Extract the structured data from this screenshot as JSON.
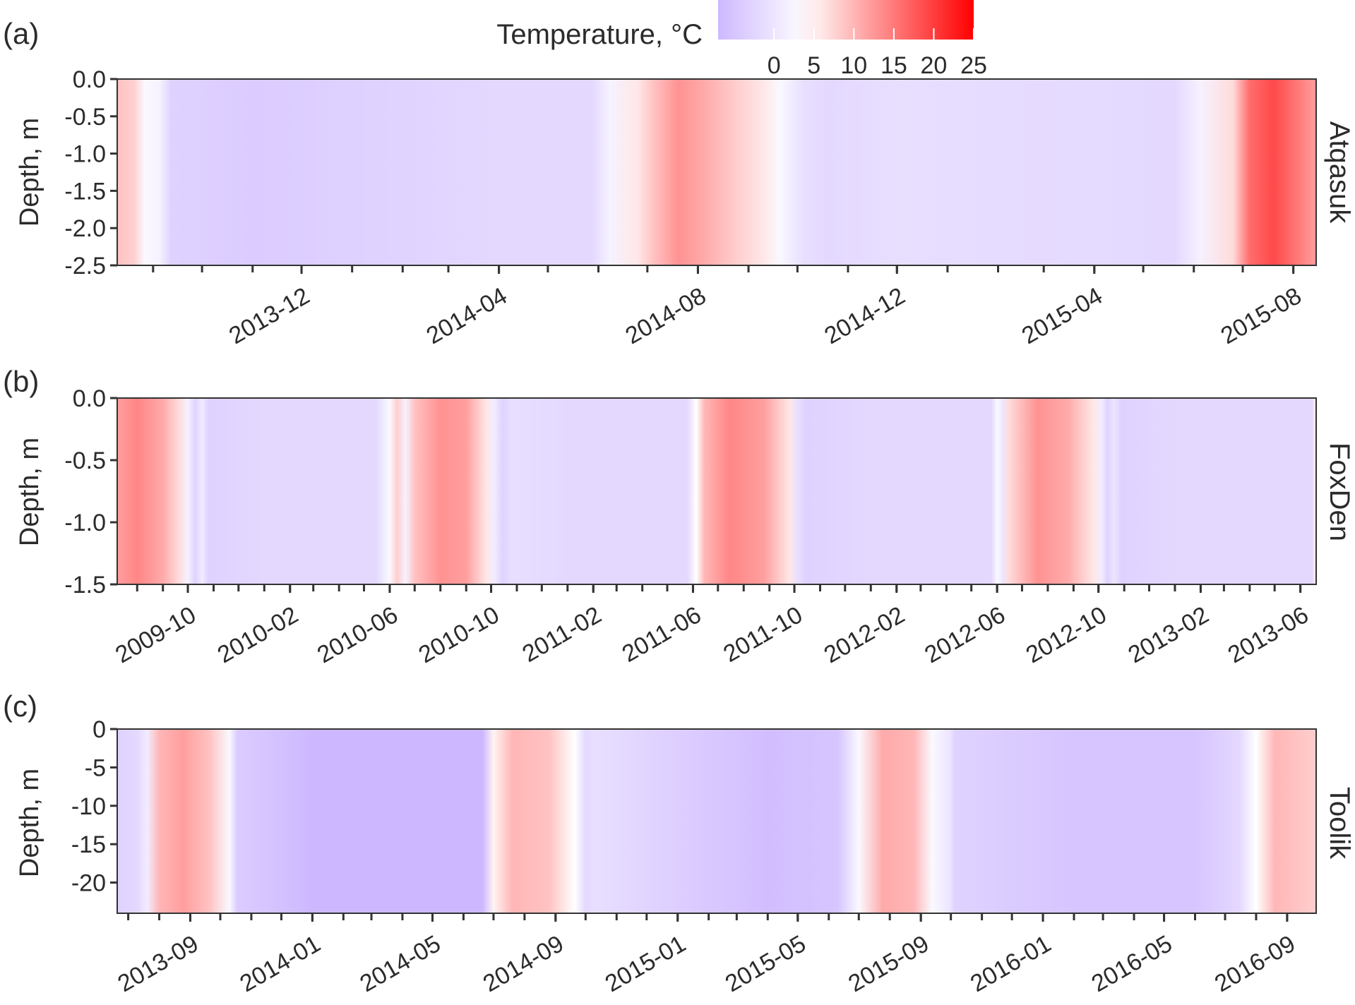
{
  "legend": {
    "title": "Temperature, °C",
    "ticks": [
      "0",
      "5",
      "10",
      "15",
      "20",
      "25"
    ],
    "tick_values": [
      0,
      5,
      10,
      15,
      20,
      25
    ],
    "range": [
      -7,
      25
    ],
    "colors": {
      "cold": "#cdb8ff",
      "mid": "#ffffff",
      "hot": "#ff0000"
    }
  },
  "panels": [
    {
      "letter": "(a)",
      "site": "Atqasuk",
      "ylabel": "Depth, m",
      "yticks": [
        "0.0",
        "-0.5",
        "-1.0",
        "-1.5",
        "-2.0",
        "-2.5"
      ],
      "xticks": [
        "2013-12",
        "2014-04",
        "2014-08",
        "2014-12",
        "2015-04",
        "2015-08"
      ]
    },
    {
      "letter": "(b)",
      "site": "FoxDen",
      "ylabel": "Depth, m",
      "yticks": [
        "0.0",
        "-0.5",
        "-1.0",
        "-1.5"
      ],
      "xticks": [
        "2009-10",
        "2010-02",
        "2010-06",
        "2010-10",
        "2011-02",
        "2011-06",
        "2011-10",
        "2012-02",
        "2012-06",
        "2012-10",
        "2013-02",
        "2013-06"
      ]
    },
    {
      "letter": "(c)",
      "site": "Toolik",
      "ylabel": "Depth, m",
      "yticks": [
        "0",
        "-5",
        "-10",
        "-15",
        "-20"
      ],
      "xticks": [
        "2013-09",
        "2014-01",
        "2014-05",
        "2014-09",
        "2015-01",
        "2015-05",
        "2015-09",
        "2016-01",
        "2016-05",
        "2016-09"
      ]
    }
  ],
  "chart_data": [
    {
      "type": "heatmap",
      "panel": "(a)",
      "facet": "Atqasuk",
      "ylabel": "Depth, m",
      "ylim": [
        -2.5,
        0.0
      ],
      "yticks": [
        0.0,
        -0.5,
        -1.0,
        -1.5,
        -2.0,
        -2.5
      ],
      "xlim": [
        "2013-08-10",
        "2015-08-15"
      ],
      "xticks": [
        "2013-12",
        "2014-04",
        "2014-08",
        "2014-12",
        "2015-04",
        "2015-08"
      ],
      "value_label": "Temperature, °C",
      "profile": [
        {
          "date": "2013-08-10",
          "t": 9
        },
        {
          "date": "2013-08-20",
          "t": 8
        },
        {
          "date": "2013-08-27",
          "t": 3
        },
        {
          "date": "2013-09-05",
          "t": 2
        },
        {
          "date": "2013-09-12",
          "t": -3
        },
        {
          "date": "2013-11-01",
          "t": -4
        },
        {
          "date": "2014-01-15",
          "t": -3
        },
        {
          "date": "2014-04-01",
          "t": -2
        },
        {
          "date": "2014-05-28",
          "t": -2
        },
        {
          "date": "2014-06-08",
          "t": 2
        },
        {
          "date": "2014-06-25",
          "t": 6
        },
        {
          "date": "2014-07-05",
          "t": 9
        },
        {
          "date": "2014-07-20",
          "t": 13
        },
        {
          "date": "2014-08-05",
          "t": 11
        },
        {
          "date": "2014-08-25",
          "t": 8
        },
        {
          "date": "2014-09-10",
          "t": 6
        },
        {
          "date": "2014-09-20",
          "t": 3
        },
        {
          "date": "2014-10-05",
          "t": -1
        },
        {
          "date": "2014-10-20",
          "t": -2
        },
        {
          "date": "2014-12-01",
          "t": -1
        },
        {
          "date": "2015-02-01",
          "t": -1.5
        },
        {
          "date": "2015-05-20",
          "t": -2
        },
        {
          "date": "2015-06-05",
          "t": 2
        },
        {
          "date": "2015-06-25",
          "t": 7
        },
        {
          "date": "2015-07-05",
          "t": 16
        },
        {
          "date": "2015-07-20",
          "t": 19
        },
        {
          "date": "2015-08-15",
          "t": 12
        }
      ]
    },
    {
      "type": "heatmap",
      "panel": "(b)",
      "facet": "FoxDen",
      "ylabel": "Depth, m",
      "ylim": [
        -1.5,
        0.0
      ],
      "yticks": [
        0.0,
        -0.5,
        -1.0,
        -1.5
      ],
      "xlim": [
        "2009-07-08",
        "2013-06-20"
      ],
      "xticks": [
        "2009-10",
        "2010-02",
        "2010-06",
        "2010-10",
        "2011-02",
        "2011-06",
        "2011-10",
        "2012-02",
        "2012-06",
        "2012-10",
        "2013-02",
        "2013-06"
      ],
      "value_label": "Temperature, °C",
      "profile": [
        {
          "date": "2009-07-08",
          "t": 12
        },
        {
          "date": "2009-08-01",
          "t": 14
        },
        {
          "date": "2009-09-01",
          "t": 11
        },
        {
          "date": "2009-09-20",
          "t": 7
        },
        {
          "date": "2009-10-01",
          "t": 2
        },
        {
          "date": "2009-10-10",
          "t": -3
        },
        {
          "date": "2009-10-18",
          "t": 1
        },
        {
          "date": "2009-10-26",
          "t": -3
        },
        {
          "date": "2010-01-01",
          "t": -2
        },
        {
          "date": "2010-05-15",
          "t": -2
        },
        {
          "date": "2010-06-01",
          "t": 3
        },
        {
          "date": "2010-06-10",
          "t": 8
        },
        {
          "date": "2010-06-20",
          "t": 2
        },
        {
          "date": "2010-07-01",
          "t": 9
        },
        {
          "date": "2010-08-01",
          "t": 13
        },
        {
          "date": "2010-09-01",
          "t": 12
        },
        {
          "date": "2010-09-25",
          "t": 6
        },
        {
          "date": "2010-10-05",
          "t": 1
        },
        {
          "date": "2010-10-15",
          "t": -3
        },
        {
          "date": "2010-10-25",
          "t": -1
        },
        {
          "date": "2011-01-01",
          "t": -2
        },
        {
          "date": "2011-05-25",
          "t": -2
        },
        {
          "date": "2011-06-05",
          "t": 4
        },
        {
          "date": "2011-06-15",
          "t": 10
        },
        {
          "date": "2011-07-15",
          "t": 14
        },
        {
          "date": "2011-08-25",
          "t": 12
        },
        {
          "date": "2011-09-25",
          "t": 6
        },
        {
          "date": "2011-10-05",
          "t": -1
        },
        {
          "date": "2011-10-15",
          "t": -3
        },
        {
          "date": "2012-01-01",
          "t": -2
        },
        {
          "date": "2012-05-25",
          "t": -2
        },
        {
          "date": "2012-06-01",
          "t": 3
        },
        {
          "date": "2012-06-08",
          "t": 0
        },
        {
          "date": "2012-06-15",
          "t": 7
        },
        {
          "date": "2012-07-20",
          "t": 13
        },
        {
          "date": "2012-08-25",
          "t": 11
        },
        {
          "date": "2012-09-25",
          "t": 6
        },
        {
          "date": "2012-10-05",
          "t": 1
        },
        {
          "date": "2012-10-12",
          "t": -3
        },
        {
          "date": "2012-10-20",
          "t": 0
        },
        {
          "date": "2012-10-28",
          "t": -3
        },
        {
          "date": "2013-01-01",
          "t": -2
        },
        {
          "date": "2013-06-15",
          "t": -2
        },
        {
          "date": "2013-06-20",
          "t": 5
        }
      ]
    },
    {
      "type": "heatmap",
      "panel": "(c)",
      "facet": "Toolik",
      "ylabel": "Depth, m",
      "ylim": [
        -24,
        0
      ],
      "yticks": [
        0,
        -5,
        -10,
        -15,
        -20
      ],
      "xlim": [
        "2013-06-20",
        "2016-09-30"
      ],
      "xticks": [
        "2013-09",
        "2014-01",
        "2014-05",
        "2014-09",
        "2015-01",
        "2015-05",
        "2015-09",
        "2016-01",
        "2016-05",
        "2016-09"
      ],
      "value_label": "Temperature, °C",
      "profile": [
        {
          "date": "2013-06-20",
          "t": -3
        },
        {
          "date": "2013-07-10",
          "t": -2
        },
        {
          "date": "2013-07-20",
          "t": 1
        },
        {
          "date": "2013-08-01",
          "t": 10
        },
        {
          "date": "2013-08-25",
          "t": 12
        },
        {
          "date": "2013-09-20",
          "t": 9
        },
        {
          "date": "2013-10-10",
          "t": 3
        },
        {
          "date": "2013-10-18",
          "t": -4
        },
        {
          "date": "2013-11-15",
          "t": -5
        },
        {
          "date": "2014-01-01",
          "t": -7
        },
        {
          "date": "2014-06-20",
          "t": -7
        },
        {
          "date": "2014-07-01",
          "t": 5
        },
        {
          "date": "2014-07-20",
          "t": 10
        },
        {
          "date": "2014-08-25",
          "t": 9
        },
        {
          "date": "2014-09-20",
          "t": 4
        },
        {
          "date": "2014-10-01",
          "t": -2
        },
        {
          "date": "2014-10-10",
          "t": -1
        },
        {
          "date": "2015-01-15",
          "t": -4
        },
        {
          "date": "2015-04-01",
          "t": -6
        },
        {
          "date": "2015-06-10",
          "t": -5
        },
        {
          "date": "2015-07-01",
          "t": 3
        },
        {
          "date": "2015-07-25",
          "t": 11
        },
        {
          "date": "2015-08-25",
          "t": 10
        },
        {
          "date": "2015-09-12",
          "t": 3
        },
        {
          "date": "2015-09-30",
          "t": 0
        },
        {
          "date": "2015-10-05",
          "t": -3
        },
        {
          "date": "2016-02-01",
          "t": -5
        },
        {
          "date": "2016-06-01",
          "t": -5
        },
        {
          "date": "2016-07-15",
          "t": -2
        },
        {
          "date": "2016-08-01",
          "t": 4
        },
        {
          "date": "2016-08-20",
          "t": 10
        },
        {
          "date": "2016-09-30",
          "t": 8
        }
      ]
    }
  ]
}
